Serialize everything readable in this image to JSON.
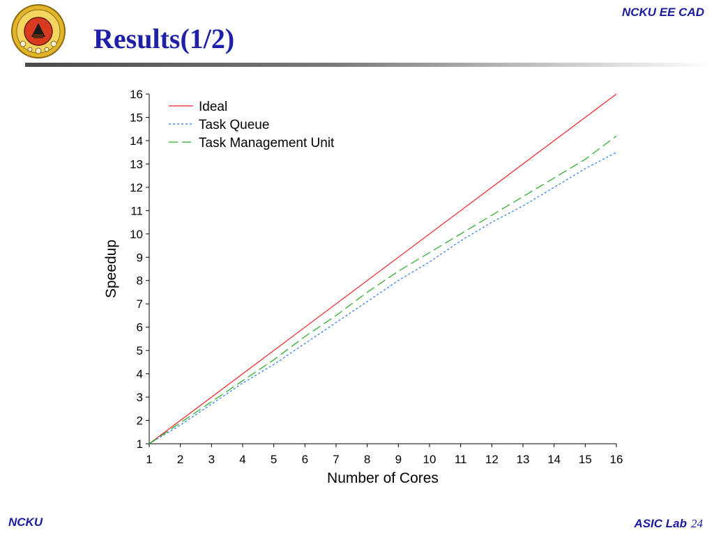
{
  "header": {
    "title": "Results(1/2)",
    "org": "NCKU EE CAD",
    "logo_icon": "university-seal-icon"
  },
  "footer": {
    "left": "NCKU",
    "lab": "ASIC Lab",
    "page": "24"
  },
  "colors": {
    "title": "#1f1fa8",
    "ideal": "#ee2222",
    "task_queue": "#2277ee",
    "tmu": "#22aa22"
  },
  "chart_data": {
    "type": "line",
    "title": "",
    "xlabel": "Number of Cores",
    "ylabel": "Speedup",
    "xlim": [
      1,
      16
    ],
    "ylim": [
      1,
      16
    ],
    "xticks": [
      1,
      2,
      3,
      4,
      5,
      6,
      7,
      8,
      9,
      10,
      11,
      12,
      13,
      14,
      15,
      16
    ],
    "yticks": [
      1,
      2,
      3,
      4,
      5,
      6,
      7,
      8,
      9,
      10,
      11,
      12,
      13,
      14,
      15,
      16
    ],
    "grid": false,
    "legend": "top-left",
    "x": [
      1,
      2,
      3,
      4,
      5,
      6,
      7,
      8,
      9,
      10,
      11,
      12,
      13,
      14,
      15,
      16
    ],
    "series": [
      {
        "name": "Ideal",
        "style": "solid",
        "color": "#ee2222",
        "values": [
          1,
          2,
          3,
          4,
          5,
          6,
          7,
          8,
          9,
          10,
          11,
          12,
          13,
          14,
          15,
          16
        ]
      },
      {
        "name": "Task Queue",
        "style": "dotted",
        "color": "#2277ee",
        "values": [
          1,
          1.8,
          2.7,
          3.6,
          4.4,
          5.3,
          6.2,
          7.1,
          8.0,
          8.8,
          9.7,
          10.5,
          11.2,
          12.0,
          12.8,
          13.5
        ]
      },
      {
        "name": "Task Management Unit",
        "style": "dashed",
        "color": "#22aa22",
        "values": [
          1,
          1.9,
          2.8,
          3.7,
          4.6,
          5.6,
          6.5,
          7.5,
          8.4,
          9.2,
          10.0,
          10.8,
          11.6,
          12.4,
          13.2,
          14.2
        ]
      }
    ]
  }
}
